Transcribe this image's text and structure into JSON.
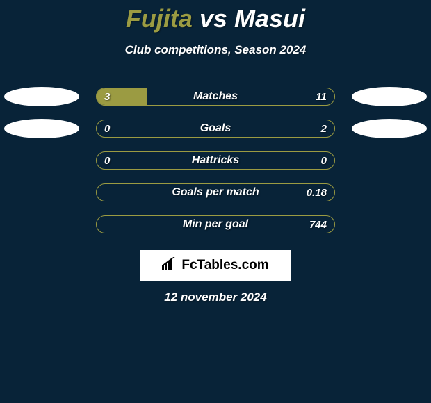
{
  "header": {
    "player1": "Fujita",
    "vs": "vs",
    "player2": "Masui",
    "subtitle": "Club competitions, Season 2024"
  },
  "rows": [
    {
      "label": "Matches",
      "left": "3",
      "right": "11",
      "fill_pct": 21,
      "show_badges": true
    },
    {
      "label": "Goals",
      "left": "0",
      "right": "2",
      "fill_pct": 0,
      "show_badges": true
    },
    {
      "label": "Hattricks",
      "left": "0",
      "right": "0",
      "fill_pct": 0,
      "show_badges": false
    },
    {
      "label": "Goals per match",
      "left": "",
      "right": "0.18",
      "fill_pct": 0,
      "show_badges": false
    },
    {
      "label": "Min per goal",
      "left": "",
      "right": "744",
      "fill_pct": 0,
      "show_badges": false
    }
  ],
  "logo": {
    "text": "FcTables.com"
  },
  "date": "12 november 2024",
  "colors": {
    "accent": "#9b9b42",
    "background": "#082338",
    "badge": "#ffffff"
  }
}
